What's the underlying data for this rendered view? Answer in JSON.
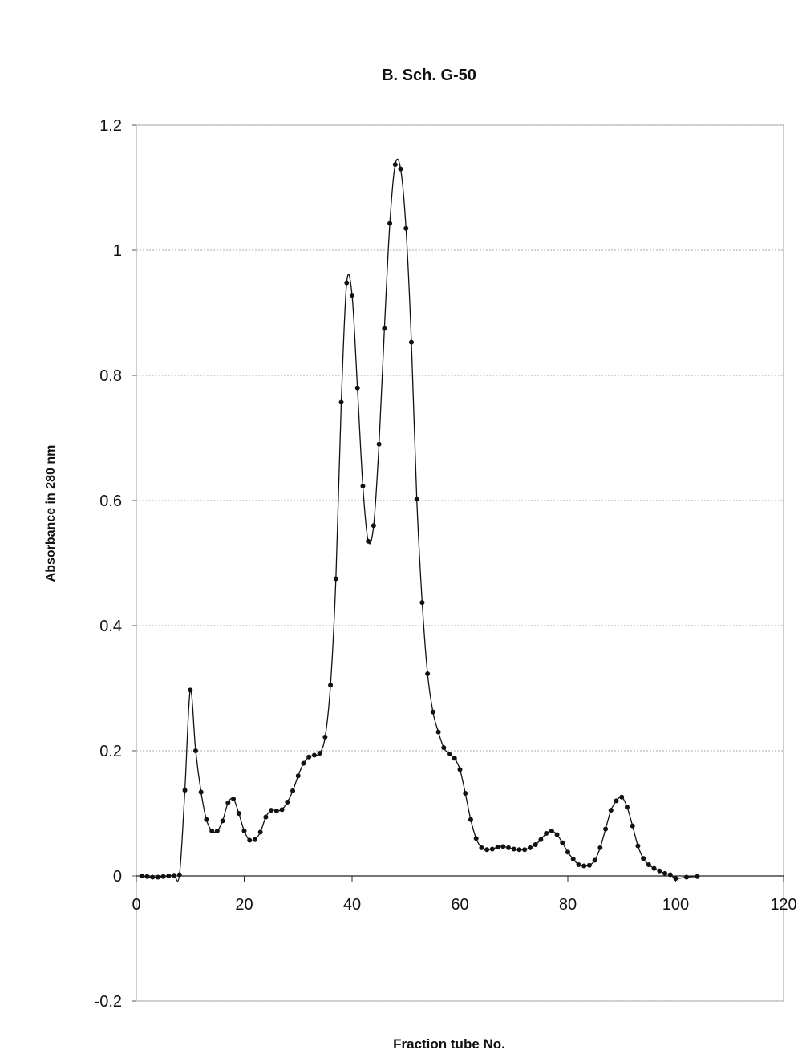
{
  "chart_data": {
    "type": "line",
    "title": "B. Sch. G-50",
    "x_label": "Fraction tube No.",
    "y_label": "Absorbance in 280 nm",
    "x": [
      1,
      2,
      3,
      4,
      5,
      6,
      7,
      8,
      9,
      10,
      11,
      12,
      13,
      14,
      15,
      16,
      17,
      18,
      19,
      20,
      21,
      22,
      23,
      24,
      25,
      26,
      27,
      28,
      29,
      30,
      31,
      32,
      33,
      34,
      35,
      36,
      37,
      38,
      39,
      40,
      41,
      42,
      43,
      44,
      45,
      46,
      47,
      48,
      49,
      50,
      51,
      52,
      53,
      54,
      55,
      56,
      57,
      58,
      59,
      60,
      61,
      62,
      63,
      64,
      65,
      66,
      67,
      68,
      69,
      70,
      71,
      72,
      73,
      74,
      75,
      76,
      77,
      78,
      79,
      80,
      81,
      82,
      83,
      84,
      85,
      86,
      87,
      88,
      89,
      90,
      91,
      92,
      93,
      94,
      95,
      96,
      97,
      98,
      99,
      100,
      102,
      104
    ],
    "series": [
      {
        "name": "Absorbance",
        "color": "#111111",
        "values": [
          0,
          -0.001,
          -0.002,
          -0.002,
          -0.001,
          0,
          0.001,
          0.002,
          0.137,
          0.297,
          0.2,
          0.134,
          0.09,
          0.072,
          0.072,
          0.088,
          0.117,
          0.123,
          0.1,
          0.072,
          0.057,
          0.058,
          0.07,
          0.094,
          0.105,
          0.104,
          0.106,
          0.118,
          0.136,
          0.16,
          0.18,
          0.19,
          0.193,
          0.196,
          0.222,
          0.305,
          0.475,
          0.757,
          0.948,
          0.928,
          0.78,
          0.623,
          0.535,
          0.56,
          0.69,
          0.875,
          1.043,
          1.137,
          1.13,
          1.035,
          0.853,
          0.602,
          0.437,
          0.323,
          0.262,
          0.23,
          0.205,
          0.195,
          0.188,
          0.17,
          0.132,
          0.09,
          0.06,
          0.045,
          0.042,
          0.043,
          0.046,
          0.047,
          0.045,
          0.043,
          0.042,
          0.042,
          0.045,
          0.05,
          0.058,
          0.068,
          0.072,
          0.066,
          0.053,
          0.038,
          0.027,
          0.018,
          0.016,
          0.017,
          0.025,
          0.045,
          0.075,
          0.105,
          0.12,
          0.126,
          0.11,
          0.08,
          0.048,
          0.028,
          0.018,
          0.012,
          0.008,
          0.004,
          0.002,
          -0.004,
          -0.002,
          -0.001
        ]
      }
    ],
    "xlim": [
      0,
      120
    ],
    "xticks": [
      0,
      20,
      40,
      60,
      80,
      100,
      120
    ],
    "ylim": [
      -0.2,
      1.2
    ],
    "yticks": [
      -0.2,
      0,
      0.2,
      0.4,
      0.6,
      0.8,
      1,
      1.2
    ],
    "grid": true
  }
}
